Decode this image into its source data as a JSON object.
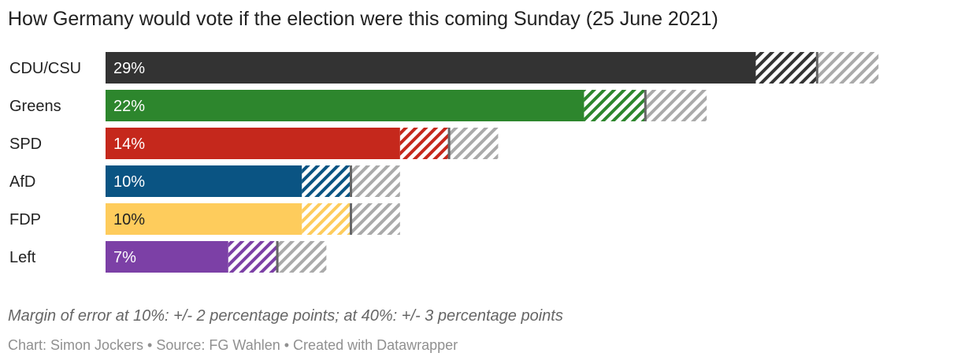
{
  "chart_data": {
    "type": "bar",
    "orientation": "horizontal",
    "title": "How Germany would vote if the election were this coming Sunday (25 June 2021)",
    "categories": [
      "CDU/CSU",
      "Greens",
      "SPD",
      "AfD",
      "FDP",
      "Left"
    ],
    "values": [
      29,
      22,
      14,
      10,
      10,
      7
    ],
    "value_labels": [
      "29%",
      "22%",
      "14%",
      "10%",
      "10%",
      "7%"
    ],
    "margin_of_error": [
      2.5,
      2.5,
      2.0,
      2.0,
      2.0,
      2.0
    ],
    "colors": [
      "#333333",
      "#2d862d",
      "#c5281c",
      "#0a5483",
      "#fecc5c",
      "#7c40a6"
    ],
    "value_label_colors": [
      "#ffffff",
      "#ffffff",
      "#ffffff",
      "#ffffff",
      "#222222",
      "#ffffff"
    ],
    "uncertainty_color": "#aaaaaa",
    "xlim": [
      0,
      32
    ],
    "unit": "%",
    "notes": "Margin of error at 10%: +/- 2 percentage points; at 40%: +/- 3 percentage points",
    "byline": "Chart: Simon Jockers • Source: FG Wahlen • Created with Datawrapper"
  }
}
